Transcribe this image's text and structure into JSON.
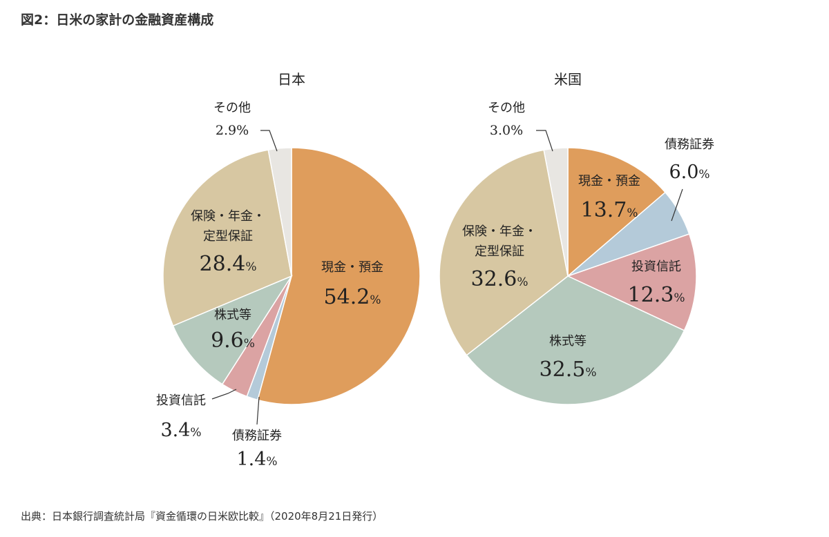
{
  "figure_title": "図2：日米の家計の金融資産構成",
  "source": "出典：日本銀行調査統計局『資金循環の日米欧比較』（2020年8月21日発行）",
  "colors": {
    "cash": "#DF9D5C",
    "bonds": "#B4CAD9",
    "trusts": "#DBA3A3",
    "stocks": "#B5C9BD",
    "insurance": "#D7C7A2",
    "other": "#E8E6E2"
  },
  "chart_data": [
    {
      "type": "pie",
      "title": "日本",
      "unit": "%",
      "slices": [
        {
          "key": "cash",
          "label": "現金・預金",
          "value": 54.2
        },
        {
          "key": "bonds",
          "label": "債務証券",
          "value": 1.4
        },
        {
          "key": "trusts",
          "label": "投資信託",
          "value": 3.4
        },
        {
          "key": "stocks",
          "label": "株式等",
          "value": 9.6
        },
        {
          "key": "insurance",
          "label": "保険・年金・定型保証",
          "label_lines": [
            "保険・年金・",
            "定型保証"
          ],
          "value": 28.4
        },
        {
          "key": "other",
          "label": "その他",
          "value": 2.9
        }
      ]
    },
    {
      "type": "pie",
      "title": "米国",
      "unit": "%",
      "slices": [
        {
          "key": "cash",
          "label": "現金・預金",
          "value": 13.7
        },
        {
          "key": "bonds",
          "label": "債務証券",
          "value": 6.0
        },
        {
          "key": "trusts",
          "label": "投資信託",
          "value": 12.3
        },
        {
          "key": "stocks",
          "label": "株式等",
          "value": 32.5
        },
        {
          "key": "insurance",
          "label": "保険・年金・定型保証",
          "label_lines": [
            "保険・年金・",
            "定型保証"
          ],
          "value": 32.6
        },
        {
          "key": "other",
          "label": "その他",
          "value": 3.0
        }
      ]
    }
  ]
}
